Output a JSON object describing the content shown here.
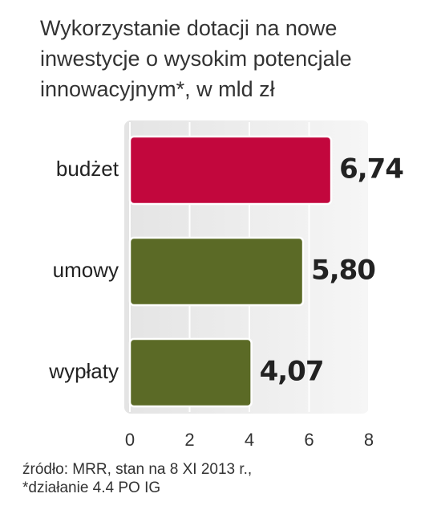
{
  "chart_data": {
    "type": "bar",
    "orientation": "horizontal",
    "title": [
      "Wykorzystanie dotacji na nowe",
      "inwestycje o wysokim potencjale",
      "innowacyjnym*, w mld zł"
    ],
    "categories": [
      "budżet",
      "umowy",
      "wypłaty"
    ],
    "values": [
      6.74,
      5.8,
      4.07
    ],
    "value_labels": [
      "6,74",
      "5,80",
      "4,07"
    ],
    "colors": [
      "#c2073d",
      "#5b6a26",
      "#5b6a26"
    ],
    "xlim": [
      0,
      8
    ],
    "xticks": [
      0,
      2,
      4,
      6,
      8
    ],
    "grid": true,
    "source": [
      "źródło: MRR, stan na 8 XI 2013 r.,",
      "*działanie 4.4 PO IG"
    ]
  }
}
